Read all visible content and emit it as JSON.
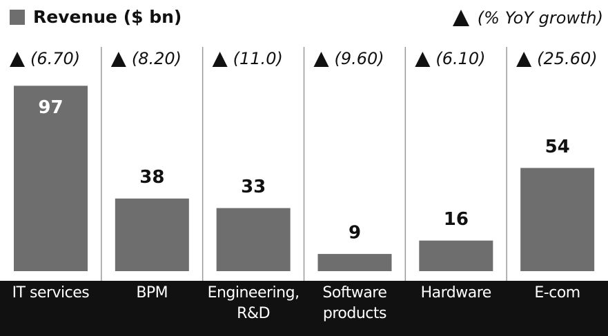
{
  "chart_data": {
    "type": "bar",
    "legend_label": "Revenue ($ bn)",
    "growth_legend_label": "(% YoY growth)",
    "categories": [
      "IT services",
      "BPM",
      "Engineering, R&D",
      "Software products",
      "Hardware",
      "E-com"
    ],
    "values": [
      97,
      38,
      33,
      9,
      16,
      54
    ],
    "growth_labels": [
      "(6.70)",
      "(8.20)",
      "(11.0)",
      "(9.60)",
      "(6.10)",
      "(25.60)"
    ],
    "color": "#6e6e6e",
    "ylim": [
      0,
      100
    ]
  }
}
